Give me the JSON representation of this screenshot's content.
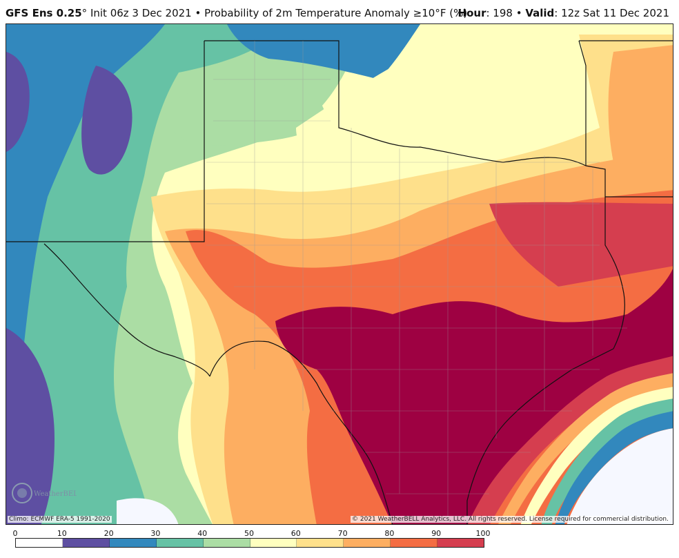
{
  "header": {
    "model": "GFS Ens 0.25",
    "degree": "°",
    "init": "Init 06z 3 Dec 2021",
    "bullet": " • ",
    "product": "Probability of 2m Temperature Anomaly ≥10°F (%)",
    "hour_label": "Hour",
    "hour_value": ": 198",
    "valid_label": "Valid",
    "valid_value": ": 12z Sat 11 Dec 2021"
  },
  "map": {
    "climo_credit": "Climo: ECMWF ERA-5 1991-2020",
    "copyright": "© 2021 WeatherBELL Analytics, LLC. All rights reserved. License required for commercial distribution.",
    "logo_text": "WeatherBELL",
    "logo_icon": "weatherbell-logo"
  },
  "scale": {
    "ticks": [
      "0",
      "10",
      "20",
      "30",
      "40",
      "50",
      "60",
      "70",
      "80",
      "90",
      "100"
    ],
    "colors": [
      "#ffffff",
      "#5e4fa2",
      "#3288bd",
      "#66c2a5",
      "#abdda4",
      "#ffffbf",
      "#fee08b",
      "#fdae61",
      "#f46d43",
      "#d53e4f",
      "#9e0142"
    ]
  }
}
